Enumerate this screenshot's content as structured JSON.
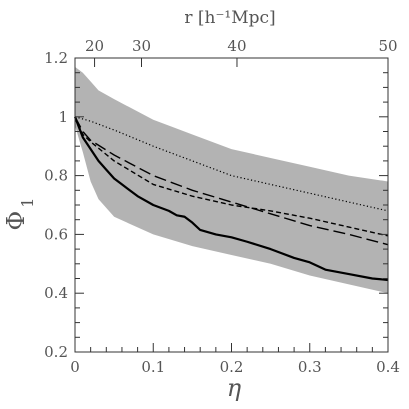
{
  "chart_data": {
    "type": "line",
    "xlabel": "η",
    "ylabel": "Φ",
    "ylabel_subscript": "1",
    "top_axis_label": "r [h⁻¹Mpc]",
    "xlim": [
      0,
      0.4
    ],
    "ylim": [
      0.2,
      1.2
    ],
    "x_ticks": [
      0,
      0.1,
      0.2,
      0.3,
      0.4
    ],
    "x_tick_labels": [
      "0",
      "0.1",
      "0.2",
      "0.3",
      "0.4"
    ],
    "y_ticks": [
      0.2,
      0.4,
      0.6,
      0.8,
      1.0,
      1.2
    ],
    "y_tick_labels": [
      "0.2",
      "0.4",
      "0.6",
      "0.8",
      "1",
      "1.2"
    ],
    "top_ticks": [
      {
        "label": "20",
        "eta": 0.025
      },
      {
        "label": "30",
        "eta": 0.085
      },
      {
        "label": "40",
        "eta": 0.207
      },
      {
        "label": "50",
        "eta": 0.4
      }
    ],
    "grid": false,
    "band": {
      "color": "#b3b3b3",
      "x": [
        0,
        0.01,
        0.02,
        0.03,
        0.05,
        0.1,
        0.15,
        0.2,
        0.25,
        0.3,
        0.35,
        0.4
      ],
      "upper": [
        1.17,
        1.15,
        1.12,
        1.09,
        1.06,
        0.99,
        0.94,
        0.89,
        0.86,
        0.83,
        0.8,
        0.78
      ],
      "lower": [
        0.97,
        0.88,
        0.78,
        0.72,
        0.66,
        0.6,
        0.56,
        0.53,
        0.5,
        0.46,
        0.43,
        0.4
      ]
    },
    "series": [
      {
        "style": "solid",
        "color": "#000000",
        "x": [
          0,
          0.01,
          0.02,
          0.03,
          0.04,
          0.05,
          0.06,
          0.08,
          0.1,
          0.12,
          0.13,
          0.14,
          0.15,
          0.16,
          0.18,
          0.2,
          0.22,
          0.25,
          0.28,
          0.3,
          0.32,
          0.35,
          0.38,
          0.4
        ],
        "y": [
          1.0,
          0.93,
          0.89,
          0.85,
          0.82,
          0.79,
          0.77,
          0.73,
          0.7,
          0.68,
          0.665,
          0.66,
          0.64,
          0.615,
          0.6,
          0.59,
          0.575,
          0.55,
          0.52,
          0.505,
          0.48,
          0.465,
          0.45,
          0.445
        ]
      },
      {
        "style": "long-dash",
        "color": "#000000",
        "x": [
          0,
          0.01,
          0.02,
          0.05,
          0.1,
          0.15,
          0.2,
          0.25,
          0.3,
          0.35,
          0.4
        ],
        "y": [
          1.0,
          0.95,
          0.92,
          0.87,
          0.8,
          0.75,
          0.71,
          0.67,
          0.63,
          0.6,
          0.565
        ]
      },
      {
        "style": "short-dash",
        "color": "#000000",
        "x": [
          0,
          0.01,
          0.02,
          0.05,
          0.1,
          0.15,
          0.2,
          0.25,
          0.3,
          0.35,
          0.4
        ],
        "y": [
          1.0,
          0.94,
          0.915,
          0.85,
          0.77,
          0.73,
          0.7,
          0.68,
          0.655,
          0.625,
          0.595
        ]
      },
      {
        "style": "dotted",
        "color": "#000000",
        "x": [
          0,
          0.02,
          0.05,
          0.1,
          0.15,
          0.2,
          0.25,
          0.3,
          0.35,
          0.4
        ],
        "y": [
          1.0,
          0.985,
          0.955,
          0.9,
          0.85,
          0.8,
          0.77,
          0.74,
          0.71,
          0.68
        ]
      }
    ]
  }
}
